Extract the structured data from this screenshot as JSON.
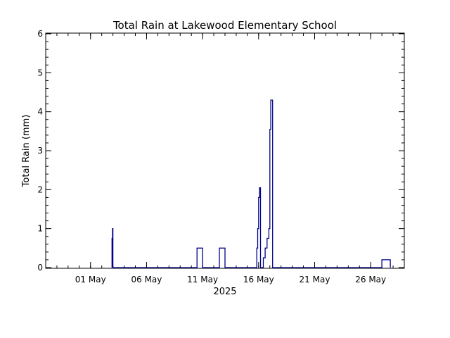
{
  "chart_data": {
    "type": "line",
    "step": true,
    "title": "Total Rain at Lakewood Elementary School",
    "xlabel": "2025",
    "ylabel": "Total Rain (mm)",
    "xlim": [
      "2025-04-27",
      "2025-05-29"
    ],
    "ylim": [
      0,
      6
    ],
    "yticks": [
      0,
      1,
      2,
      3,
      4,
      5,
      6
    ],
    "xticks": [
      {
        "date": "2025-05-01",
        "label": "01 May"
      },
      {
        "date": "2025-05-06",
        "label": "06 May"
      },
      {
        "date": "2025-05-11",
        "label": "11 May"
      },
      {
        "date": "2025-05-16",
        "label": "16 May"
      },
      {
        "date": "2025-05-21",
        "label": "21 May"
      },
      {
        "date": "2025-05-26",
        "label": "26 May"
      }
    ],
    "grid": false,
    "line_color": "#00008b",
    "series": [
      {
        "x": [
          "2025-05-02 22:00",
          "2025-05-02 23:00",
          "2025-05-03 00:00",
          "2025-05-10 12:00",
          "2025-05-11 00:00",
          "2025-05-12 12:00",
          "2025-05-13 00:00",
          "2025-05-15 20:00",
          "2025-05-15 22:00",
          "2025-05-16 00:00",
          "2025-05-16 02:00",
          "2025-05-16 04:00",
          "2025-05-16 10:00",
          "2025-05-16 14:00",
          "2025-05-16 18:00",
          "2025-05-16 22:00",
          "2025-05-17 00:00",
          "2025-05-17 02:00",
          "2025-05-17 04:00",
          "2025-05-17 06:00",
          "2025-05-27 00:00",
          "2025-05-27 18:00"
        ],
        "values": [
          0.75,
          1.0,
          0,
          0.5,
          0,
          0.5,
          0,
          0.5,
          1.0,
          1.8,
          2.05,
          0,
          0.25,
          0.5,
          0.75,
          1.0,
          3.55,
          4.3,
          4.3,
          0,
          0.2,
          0
        ]
      }
    ]
  }
}
